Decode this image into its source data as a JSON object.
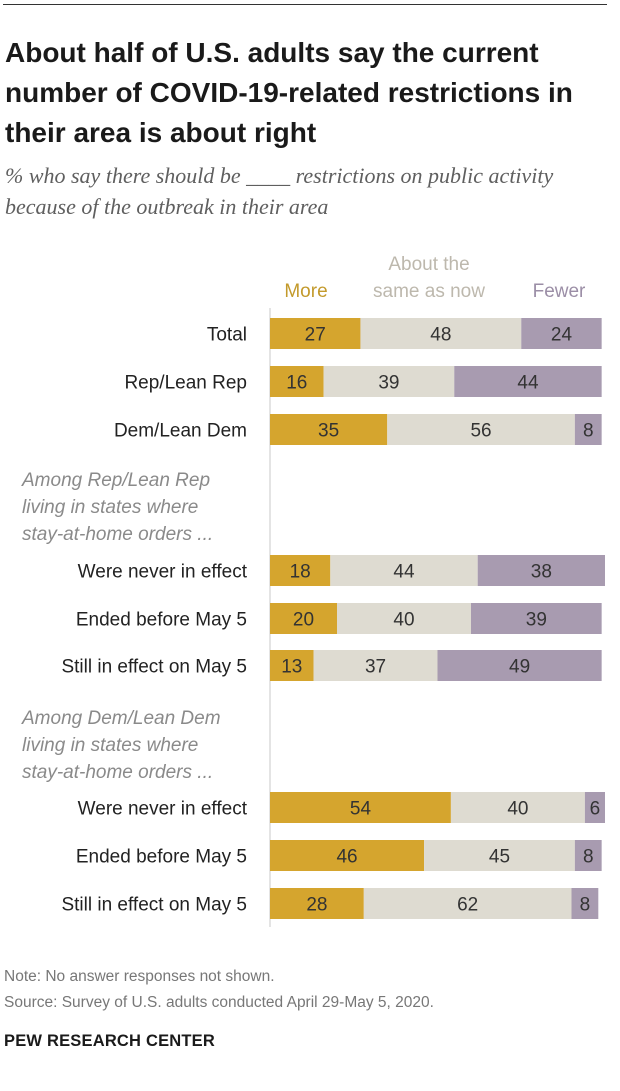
{
  "title": "About half of U.S. adults say the current number of COVID-19-related restrictions in their area is about right",
  "subtitle": "% who say there should be ____ restrictions on public activity because of the outbreak in their area",
  "note": "Note: No answer responses not shown.",
  "source": "Source: Survey of U.S. adults conducted April 29-May 5, 2020.",
  "brand": "PEW RESEARCH CENTER",
  "colors": {
    "more": "#d5a52e",
    "same": "#dedbd1",
    "fewer": "#a89bb0",
    "more_text": "#c39a2c",
    "same_text": "#bdb8ad",
    "fewer_text": "#9b8ea6"
  },
  "chart_data": {
    "type": "bar",
    "orientation": "horizontal",
    "stacked": true,
    "title": "About half of U.S. adults say the current number of COVID-19-related restrictions in their area is about right",
    "legend": [
      "More",
      "About the same as now",
      "Fewer"
    ],
    "legend_lines": {
      "more": [
        "More"
      ],
      "same": [
        "About the",
        "same as now"
      ],
      "fewer": [
        "Fewer"
      ]
    },
    "groups": [
      {
        "header": null,
        "rows": [
          {
            "label": "Total",
            "values": [
              27,
              48,
              24
            ]
          },
          {
            "label": "Rep/Lean Rep",
            "values": [
              16,
              39,
              44
            ]
          },
          {
            "label": "Dem/Lean Dem",
            "values": [
              35,
              56,
              8
            ]
          }
        ]
      },
      {
        "header": [
          "Among Rep/Lean Rep",
          "living in states where",
          "stay-at-home orders ..."
        ],
        "rows": [
          {
            "label": "Were never in effect",
            "values": [
              18,
              44,
              38
            ]
          },
          {
            "label": "Ended before May 5",
            "values": [
              20,
              40,
              39
            ]
          },
          {
            "label": "Still in effect on May 5",
            "values": [
              13,
              37,
              49
            ]
          }
        ]
      },
      {
        "header": [
          "Among Dem/Lean Dem",
          "living in states where",
          "stay-at-home orders ..."
        ],
        "rows": [
          {
            "label": "Were never in effect",
            "values": [
              54,
              40,
              6
            ]
          },
          {
            "label": "Ended before May 5",
            "values": [
              46,
              45,
              8
            ]
          },
          {
            "label": "Still in effect on May 5",
            "values": [
              28,
              62,
              8
            ]
          }
        ]
      }
    ],
    "xlim": [
      0,
      100
    ]
  }
}
